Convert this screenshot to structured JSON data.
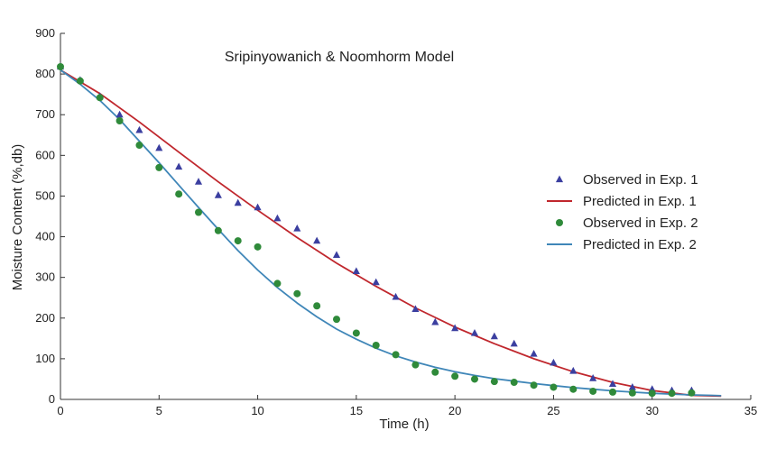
{
  "chart_data": {
    "type": "scatter",
    "title": "Sripinyowanich & Noomhorm Model",
    "xlabel": "Time (h)",
    "ylabel": "Moisture Content (%,db)",
    "xlim": [
      0,
      35
    ],
    "ylim": [
      0,
      900
    ],
    "xticks": [
      "0",
      "5",
      "10",
      "15",
      "20",
      "25",
      "30",
      "35"
    ],
    "yticks": [
      "0",
      "100",
      "200",
      "300",
      "400",
      "500",
      "600",
      "700",
      "800",
      "900"
    ],
    "grid": false,
    "legend_position": "right",
    "series": [
      {
        "name": "Observed in Exp. 1",
        "kind": "scatter",
        "marker": "triangle",
        "color": "#3b3fa0",
        "points": [
          [
            0,
            818
          ],
          [
            1,
            785
          ],
          [
            2,
            745
          ],
          [
            3,
            700
          ],
          [
            4,
            662
          ],
          [
            5,
            618
          ],
          [
            6,
            572
          ],
          [
            7,
            535
          ],
          [
            8,
            502
          ],
          [
            9,
            483
          ],
          [
            10,
            472
          ],
          [
            11,
            445
          ],
          [
            12,
            420
          ],
          [
            13,
            390
          ],
          [
            14,
            355
          ],
          [
            15,
            315
          ],
          [
            16,
            288
          ],
          [
            17,
            252
          ],
          [
            18,
            222
          ],
          [
            19,
            190
          ],
          [
            20,
            175
          ],
          [
            21,
            163
          ],
          [
            22,
            155
          ],
          [
            23,
            137
          ],
          [
            24,
            112
          ],
          [
            25,
            90
          ],
          [
            26,
            70
          ],
          [
            27,
            52
          ],
          [
            28,
            38
          ],
          [
            29,
            30
          ],
          [
            30,
            25
          ],
          [
            31,
            22
          ],
          [
            32,
            22
          ]
        ]
      },
      {
        "name": "Predicted in Exp. 1",
        "kind": "line",
        "color": "#c0272d",
        "points": [
          [
            0,
            810
          ],
          [
            2,
            752
          ],
          [
            4,
            682
          ],
          [
            6,
            608
          ],
          [
            8,
            535
          ],
          [
            10,
            465
          ],
          [
            12,
            398
          ],
          [
            14,
            335
          ],
          [
            16,
            278
          ],
          [
            18,
            225
          ],
          [
            20,
            178
          ],
          [
            22,
            137
          ],
          [
            24,
            100
          ],
          [
            26,
            68
          ],
          [
            28,
            42
          ],
          [
            30,
            22
          ],
          [
            32,
            10
          ],
          [
            33.5,
            8
          ]
        ]
      },
      {
        "name": "Observed in Exp. 2",
        "kind": "scatter",
        "marker": "circle",
        "color": "#2f8a3a",
        "points": [
          [
            0,
            818
          ],
          [
            1,
            783
          ],
          [
            2,
            742
          ],
          [
            3,
            685
          ],
          [
            4,
            625
          ],
          [
            5,
            570
          ],
          [
            6,
            505
          ],
          [
            7,
            460
          ],
          [
            8,
            415
          ],
          [
            9,
            390
          ],
          [
            10,
            375
          ],
          [
            11,
            285
          ],
          [
            12,
            260
          ],
          [
            13,
            230
          ],
          [
            14,
            197
          ],
          [
            15,
            163
          ],
          [
            16,
            133
          ],
          [
            17,
            110
          ],
          [
            18,
            85
          ],
          [
            19,
            67
          ],
          [
            20,
            57
          ],
          [
            21,
            50
          ],
          [
            22,
            44
          ],
          [
            23,
            42
          ],
          [
            24,
            35
          ],
          [
            25,
            30
          ],
          [
            26,
            25
          ],
          [
            27,
            20
          ],
          [
            28,
            18
          ],
          [
            29,
            16
          ],
          [
            30,
            15
          ],
          [
            31,
            15
          ],
          [
            32,
            16
          ]
        ]
      },
      {
        "name": "Predicted in Exp. 2",
        "kind": "line",
        "color": "#3f86b8",
        "points": [
          [
            0,
            810
          ],
          [
            1,
            775
          ],
          [
            2,
            735
          ],
          [
            3,
            688
          ],
          [
            4,
            635
          ],
          [
            5,
            582
          ],
          [
            6,
            527
          ],
          [
            7,
            472
          ],
          [
            8,
            418
          ],
          [
            9,
            366
          ],
          [
            10,
            318
          ],
          [
            11,
            275
          ],
          [
            12,
            237
          ],
          [
            13,
            203
          ],
          [
            14,
            173
          ],
          [
            15,
            148
          ],
          [
            16,
            126
          ],
          [
            17,
            107
          ],
          [
            18,
            92
          ],
          [
            19,
            79
          ],
          [
            20,
            68
          ],
          [
            21,
            59
          ],
          [
            22,
            51
          ],
          [
            23,
            45
          ],
          [
            24,
            39
          ],
          [
            25,
            34
          ],
          [
            26,
            29
          ],
          [
            27,
            25
          ],
          [
            28,
            21
          ],
          [
            29,
            18
          ],
          [
            30,
            15
          ],
          [
            31,
            13
          ],
          [
            32,
            11
          ],
          [
            33,
            10
          ],
          [
            33.5,
            9
          ]
        ]
      }
    ]
  }
}
